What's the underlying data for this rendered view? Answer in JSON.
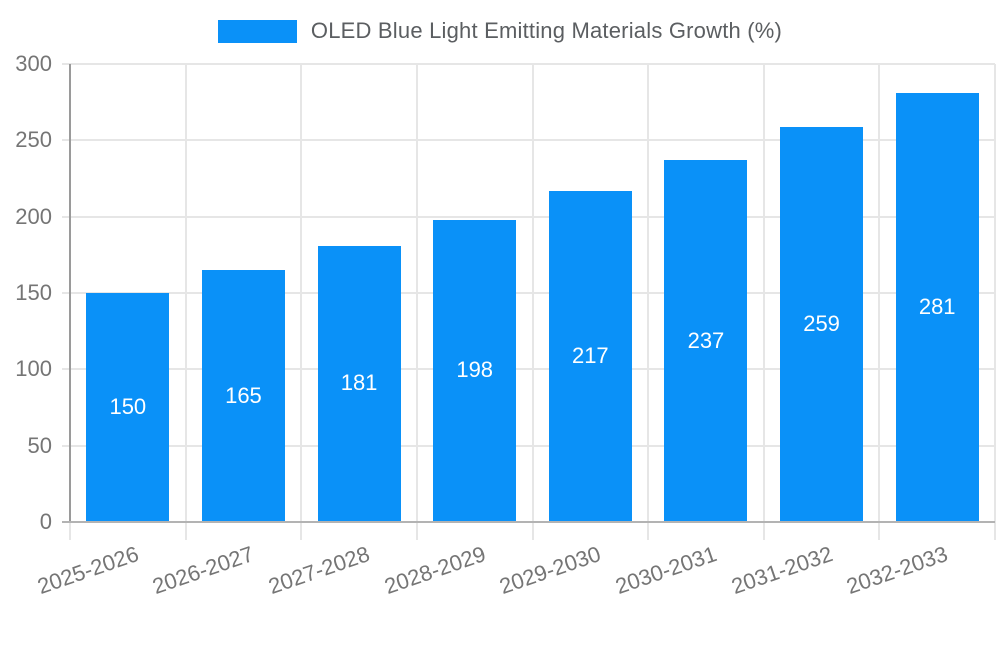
{
  "legend": {
    "label": "OLED Blue Light Emitting Materials Growth (%)"
  },
  "chart_data": {
    "type": "bar",
    "title": "OLED Blue Light Emitting Materials Growth (%)",
    "categories": [
      "2025-2026",
      "2026-2027",
      "2027-2028",
      "2028-2029",
      "2029-2030",
      "2030-2031",
      "2031-2032",
      "2032-2033"
    ],
    "series": [
      {
        "name": "OLED Blue Light Emitting Materials Growth (%)",
        "values": [
          150,
          165,
          181,
          198,
          217,
          237,
          259,
          281
        ]
      }
    ],
    "xlabel": "",
    "ylabel": "",
    "ylim": [
      0,
      300
    ],
    "yticks": [
      0,
      50,
      100,
      150,
      200,
      250,
      300
    ],
    "grid": true,
    "legend_position": "top",
    "value_labels_inside_bars": true,
    "x_label_rotation_deg": -19,
    "colors": {
      "bar": "#0a91f8",
      "value_label": "#ffffff",
      "axis_tick_text": "#757575",
      "legend_text": "#5b5e61",
      "grid_line": "#e6e6e6",
      "y_axis_line": "#9a9a9a",
      "x_axis_line": "#b3b3b3",
      "background": "#ffffff"
    }
  }
}
